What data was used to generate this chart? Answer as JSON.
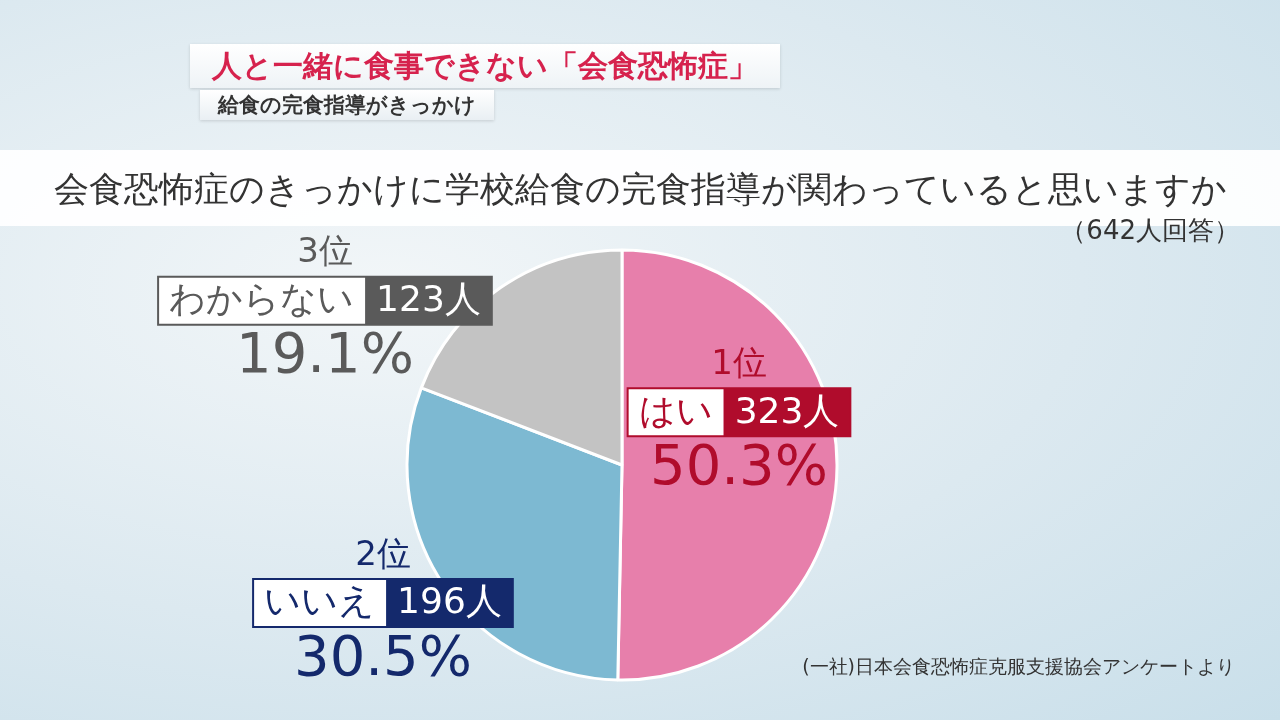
{
  "chart_data": {
    "type": "pie",
    "title": "会食恐怖症のきっかけに学校給食の完食指導が関わっていると思いますか",
    "subtitle": "（642人回答）",
    "categories": [
      "はい",
      "いいえ",
      "わからない"
    ],
    "values": [
      323,
      196,
      123
    ],
    "value_labels": [
      "323人",
      "196人",
      "123人"
    ],
    "colors": [
      "#e77fab",
      "#7db9d2",
      "#c3c3c3"
    ],
    "annotations": [
      "人と一緒に食事できない「会食恐怖症」",
      "給食の完食指導がきっかけ",
      "(一社)日本会食恐怖症克服支援協会アンケートより",
      {
        "text": "1位",
        "x": "はい"
      },
      {
        "text": "50.3%",
        "x": "はい"
      },
      {
        "text": "2位",
        "x": "いいえ"
      },
      {
        "text": "30.5%",
        "x": "いいえ"
      },
      {
        "text": "3位",
        "x": "わからない"
      },
      {
        "text": "19.1%",
        "x": "わからない"
      }
    ]
  }
}
